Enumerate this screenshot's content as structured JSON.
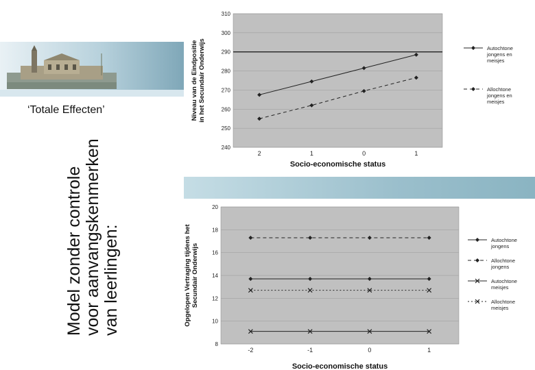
{
  "slide": {
    "title": "‘Totale Effecten’",
    "vertical_lines": [
      "Model zonder controle",
      "voor aanvangskenmerken",
      "van leerlingen:"
    ]
  },
  "chart_data": [
    {
      "type": "line",
      "ylabel": [
        "Niveau van de Eindpositie",
        "in het Secundair Onderwijs"
      ],
      "xlabel": "Socio-economische status",
      "categories": [
        "2",
        "1",
        "0",
        "1"
      ],
      "ylim": [
        240,
        310
      ],
      "yticks": [
        240,
        250,
        260,
        270,
        280,
        290,
        300,
        310
      ],
      "reference_line": 290,
      "series": [
        {
          "name": "Autochtone jongens en meisjes",
          "legend": [
            "Autochtone",
            "jongens en",
            "meisjes"
          ],
          "style": "solid",
          "marker": "diamond",
          "values": [
            267.5,
            274.5,
            281.5,
            288.5
          ]
        },
        {
          "name": "Allochtone jongens en meisjes",
          "legend": [
            "Allochtone",
            "jongens en",
            "meisjes"
          ],
          "style": "dashed",
          "marker": "diamond",
          "values": [
            255,
            262,
            269.5,
            276.5
          ]
        }
      ]
    },
    {
      "type": "line",
      "ylabel": [
        "Opgelopen Vertraging tijdens het",
        "Secundair Onderwijs"
      ],
      "xlabel": "Socio-economische status",
      "categories": [
        "-2",
        "-1",
        "0",
        "1"
      ],
      "ylim": [
        8,
        20
      ],
      "yticks": [
        8,
        10,
        12,
        14,
        16,
        18,
        20
      ],
      "series": [
        {
          "name": "Autochtone jongens",
          "legend": [
            "Autochtone",
            "jongens"
          ],
          "style": "solid",
          "marker": "diamond",
          "values": [
            13.7,
            13.7,
            13.7,
            13.7
          ]
        },
        {
          "name": "Allochtone jongens",
          "legend": [
            "Allochtone",
            "jongens"
          ],
          "style": "dashed",
          "marker": "diamond",
          "values": [
            17.3,
            17.3,
            17.3,
            17.3
          ]
        },
        {
          "name": "Autochtone meisjes",
          "legend": [
            "Autochtone",
            "meisjes"
          ],
          "style": "solid",
          "marker": "x",
          "values": [
            9.1,
            9.1,
            9.1,
            9.1
          ]
        },
        {
          "name": "Allochtone meisjes",
          "legend": [
            "Allochtone",
            "meisjes"
          ],
          "style": "dotted",
          "marker": "x",
          "values": [
            12.7,
            12.7,
            12.7,
            12.7
          ]
        }
      ]
    }
  ]
}
